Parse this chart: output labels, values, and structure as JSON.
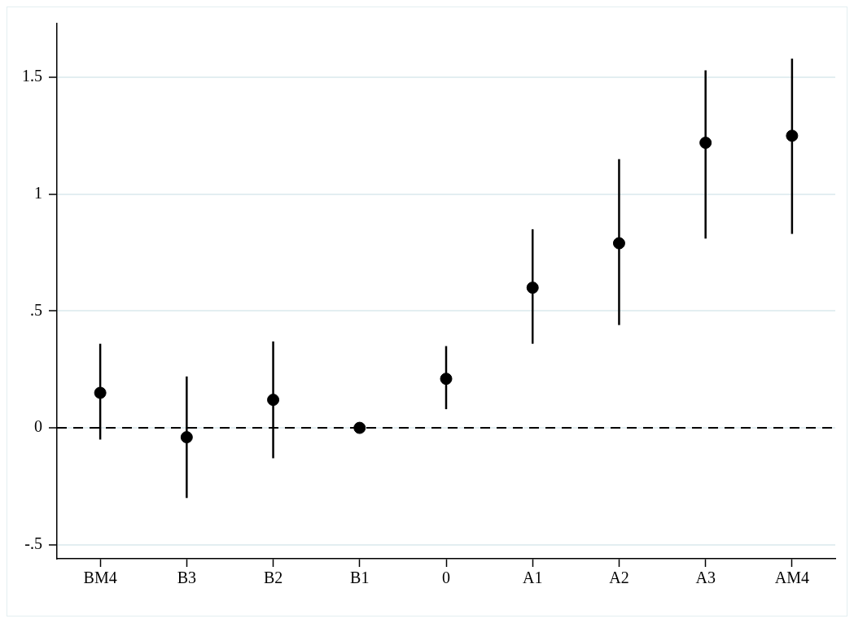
{
  "chart_data": {
    "type": "scatter",
    "categories": [
      "BM4",
      "B3",
      "B2",
      "B1",
      "0",
      "A1",
      "A2",
      "A3",
      "AM4"
    ],
    "series": [
      {
        "color": "#000000",
        "values": [
          0.15,
          -0.04,
          0.12,
          0,
          0.21,
          0.6,
          0.79,
          1.22,
          1.25
        ],
        "errors": [
          [
            -0.05,
            0.36
          ],
          [
            -0.3,
            0.22
          ],
          [
            -0.13,
            0.37
          ],
          null,
          [
            0.08,
            0.35
          ],
          [
            0.36,
            0.85
          ],
          [
            0.44,
            1.15
          ],
          [
            0.81,
            1.53
          ],
          [
            0.83,
            1.58
          ]
        ]
      }
    ],
    "ylim": [
      -0.56,
      1.73
    ],
    "yticks": [
      {
        "value": -0.5,
        "label": "-.5"
      },
      0,
      {
        "value": 0.5,
        "label": ".5"
      },
      1,
      1.5
    ],
    "ref_lines": [
      {
        "axis": "y",
        "value": 0,
        "color": "#000000",
        "line_style": "dashed"
      }
    ],
    "grid": "y",
    "legend": false,
    "marker": "circle"
  }
}
